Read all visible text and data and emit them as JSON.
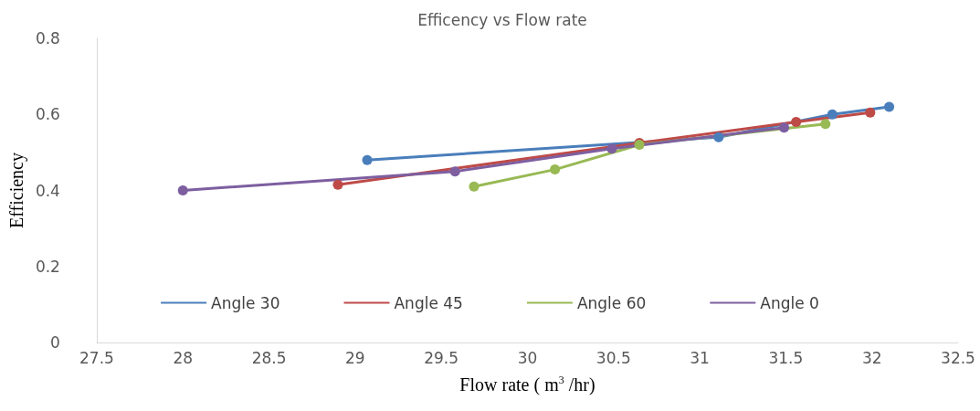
{
  "chart_data": {
    "type": "line",
    "title": "Efficency vs Flow rate",
    "xlabel": "Flow rate ( m$^{3}$ /hr)",
    "ylabel": "Efficiency",
    "xlim": [
      27.5,
      32.5
    ],
    "xticks": [
      27.5,
      28,
      28.5,
      29,
      29.5,
      30,
      30.5,
      31,
      31.5,
      32,
      32.5
    ],
    "ylim": [
      0,
      0.8
    ],
    "yticks": [
      0,
      0.2,
      0.4,
      0.6,
      0.8
    ],
    "grid": false,
    "legend": "bottom",
    "marker": "circle",
    "line_style": "solid",
    "series": [
      {
        "name": "Angle 30",
        "color": "#4a7ebb",
        "x": [
          29.07,
          31.11,
          31.77,
          32.1
        ],
        "values": [
          0.48,
          0.54,
          0.6,
          0.62
        ]
      },
      {
        "name": "Angle 45",
        "color": "#be4b48",
        "x": [
          28.9,
          30.65,
          31.56,
          31.99
        ],
        "values": [
          0.415,
          0.525,
          0.58,
          0.605
        ]
      },
      {
        "name": "Angle 60",
        "color": "#98b954",
        "x": [
          29.69,
          30.16,
          30.65,
          31.73
        ],
        "values": [
          0.41,
          0.455,
          0.52,
          0.575
        ]
      },
      {
        "name": "Angle 0",
        "color": "#7d5fa0",
        "x": [
          28.0,
          29.58,
          30.49,
          31.49
        ],
        "values": [
          0.4,
          0.45,
          0.51,
          0.565
        ]
      }
    ]
  }
}
